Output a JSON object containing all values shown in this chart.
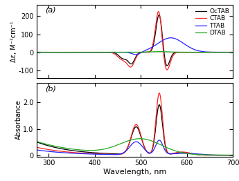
{
  "wavelength_range": [
    275,
    700
  ],
  "colors": {
    "OcTAB": "#000000",
    "CTAB": "#ff2222",
    "TTAB": "#2222ff",
    "DTAB": "#22aa22"
  },
  "legend_labels": [
    "OcTAB",
    "CTAB",
    "TTAB",
    "DTAB"
  ],
  "panel_a_label": "(a)",
  "panel_b_label": "(b)",
  "xlabel": "Wavelength, nm",
  "ylabel_a": "Δε, M⁻¹cm⁻¹",
  "ylabel_b": "Absorbance",
  "xticks": [
    300,
    400,
    500,
    600,
    700
  ],
  "yticks_a": [
    -100,
    0,
    100,
    200
  ],
  "yticks_b": [
    0.0,
    1.0,
    2.0
  ],
  "ylim_a": [
    -145,
    265
  ],
  "ylim_b": [
    -0.05,
    2.75
  ],
  "background_color": "#ffffff",
  "cd_OcTAB": {
    "gaussians": [
      {
        "mu": 462,
        "sigma": 9,
        "amp": -35
      },
      {
        "mu": 480,
        "sigma": 7,
        "amp": -60
      },
      {
        "mu": 540,
        "sigma": 7,
        "amp": 215
      },
      {
        "mu": 555,
        "sigma": 7,
        "amp": -90
      }
    ]
  },
  "cd_CTAB": {
    "gaussians": [
      {
        "mu": 460,
        "sigma": 10,
        "amp": -40
      },
      {
        "mu": 479,
        "sigma": 8,
        "amp": -75
      },
      {
        "mu": 539,
        "sigma": 7,
        "amp": 240
      },
      {
        "mu": 555,
        "sigma": 8,
        "amp": -110
      }
    ]
  },
  "cd_TTAB": {
    "gaussians": [
      {
        "mu": 490,
        "sigma": 9,
        "amp": -15
      },
      {
        "mu": 565,
        "sigma": 28,
        "amp": 80
      }
    ]
  },
  "cd_DTAB": {
    "gaussians": [
      {
        "mu": 540,
        "sigma": 20,
        "amp": 4
      }
    ]
  },
  "abs_OcTAB": {
    "gaussians": [
      {
        "mu": 490,
        "sigma": 11,
        "amp": 1.05
      },
      {
        "mu": 540,
        "sigma": 7,
        "amp": 1.9
      },
      {
        "mu": 590,
        "sigma": 18,
        "amp": 0.1
      }
    ],
    "baseline_amp": 0.5,
    "baseline_decay": 75
  },
  "abs_CTAB": {
    "gaussians": [
      {
        "mu": 490,
        "sigma": 11,
        "amp": 1.15
      },
      {
        "mu": 540,
        "sigma": 7,
        "amp": 2.35
      },
      {
        "mu": 590,
        "sigma": 18,
        "amp": 0.12
      }
    ],
    "baseline_amp": 0.3,
    "baseline_decay": 75
  },
  "abs_TTAB": {
    "gaussians": [
      {
        "mu": 490,
        "sigma": 14,
        "amp": 0.5
      },
      {
        "mu": 540,
        "sigma": 8,
        "amp": 0.55
      },
      {
        "mu": 595,
        "sigma": 30,
        "amp": 0.07
      }
    ],
    "baseline_amp": 0.2,
    "baseline_decay": 80
  },
  "abs_DTAB": {
    "gaussians": [
      {
        "mu": 500,
        "sigma": 45,
        "amp": 0.58
      }
    ],
    "baseline_amp": 0.52,
    "baseline_decay": 95
  }
}
